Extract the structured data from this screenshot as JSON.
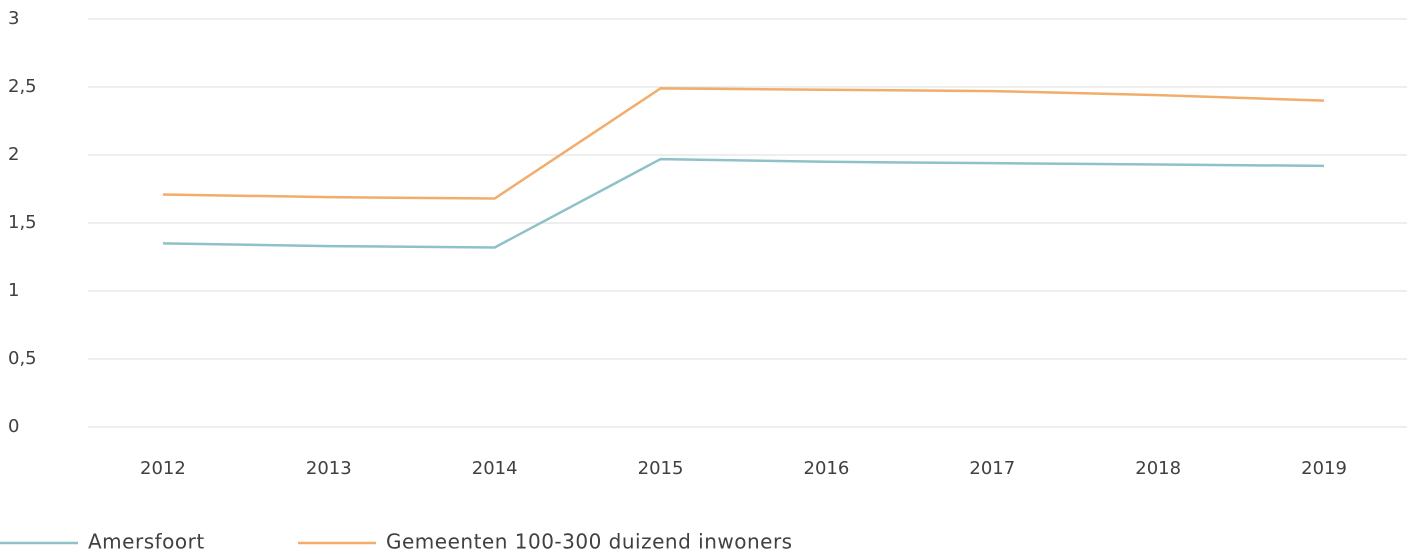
{
  "chart_data": {
    "type": "line",
    "categories": [
      "2012",
      "2013",
      "2014",
      "2015",
      "2016",
      "2017",
      "2018",
      "2019"
    ],
    "series": [
      {
        "name": "Amersfoort",
        "color": "#8fc1c8",
        "values": [
          1.35,
          1.33,
          1.32,
          1.97,
          1.95,
          1.94,
          1.93,
          1.92
        ]
      },
      {
        "name": "Gemeenten 100-300 duizend inwoners",
        "color": "#f2ad6a",
        "values": [
          1.71,
          1.69,
          1.68,
          2.49,
          2.48,
          2.47,
          2.44,
          2.4
        ]
      }
    ],
    "ylim": [
      0,
      3
    ],
    "yticks": [
      0,
      {
        "value": 0.5,
        "label": "0,5"
      },
      1,
      {
        "value": 1.5,
        "label": "1,5"
      },
      2,
      {
        "value": 2.5,
        "label": "2,5"
      },
      3
    ],
    "grid": true,
    "legend": "bottom"
  }
}
